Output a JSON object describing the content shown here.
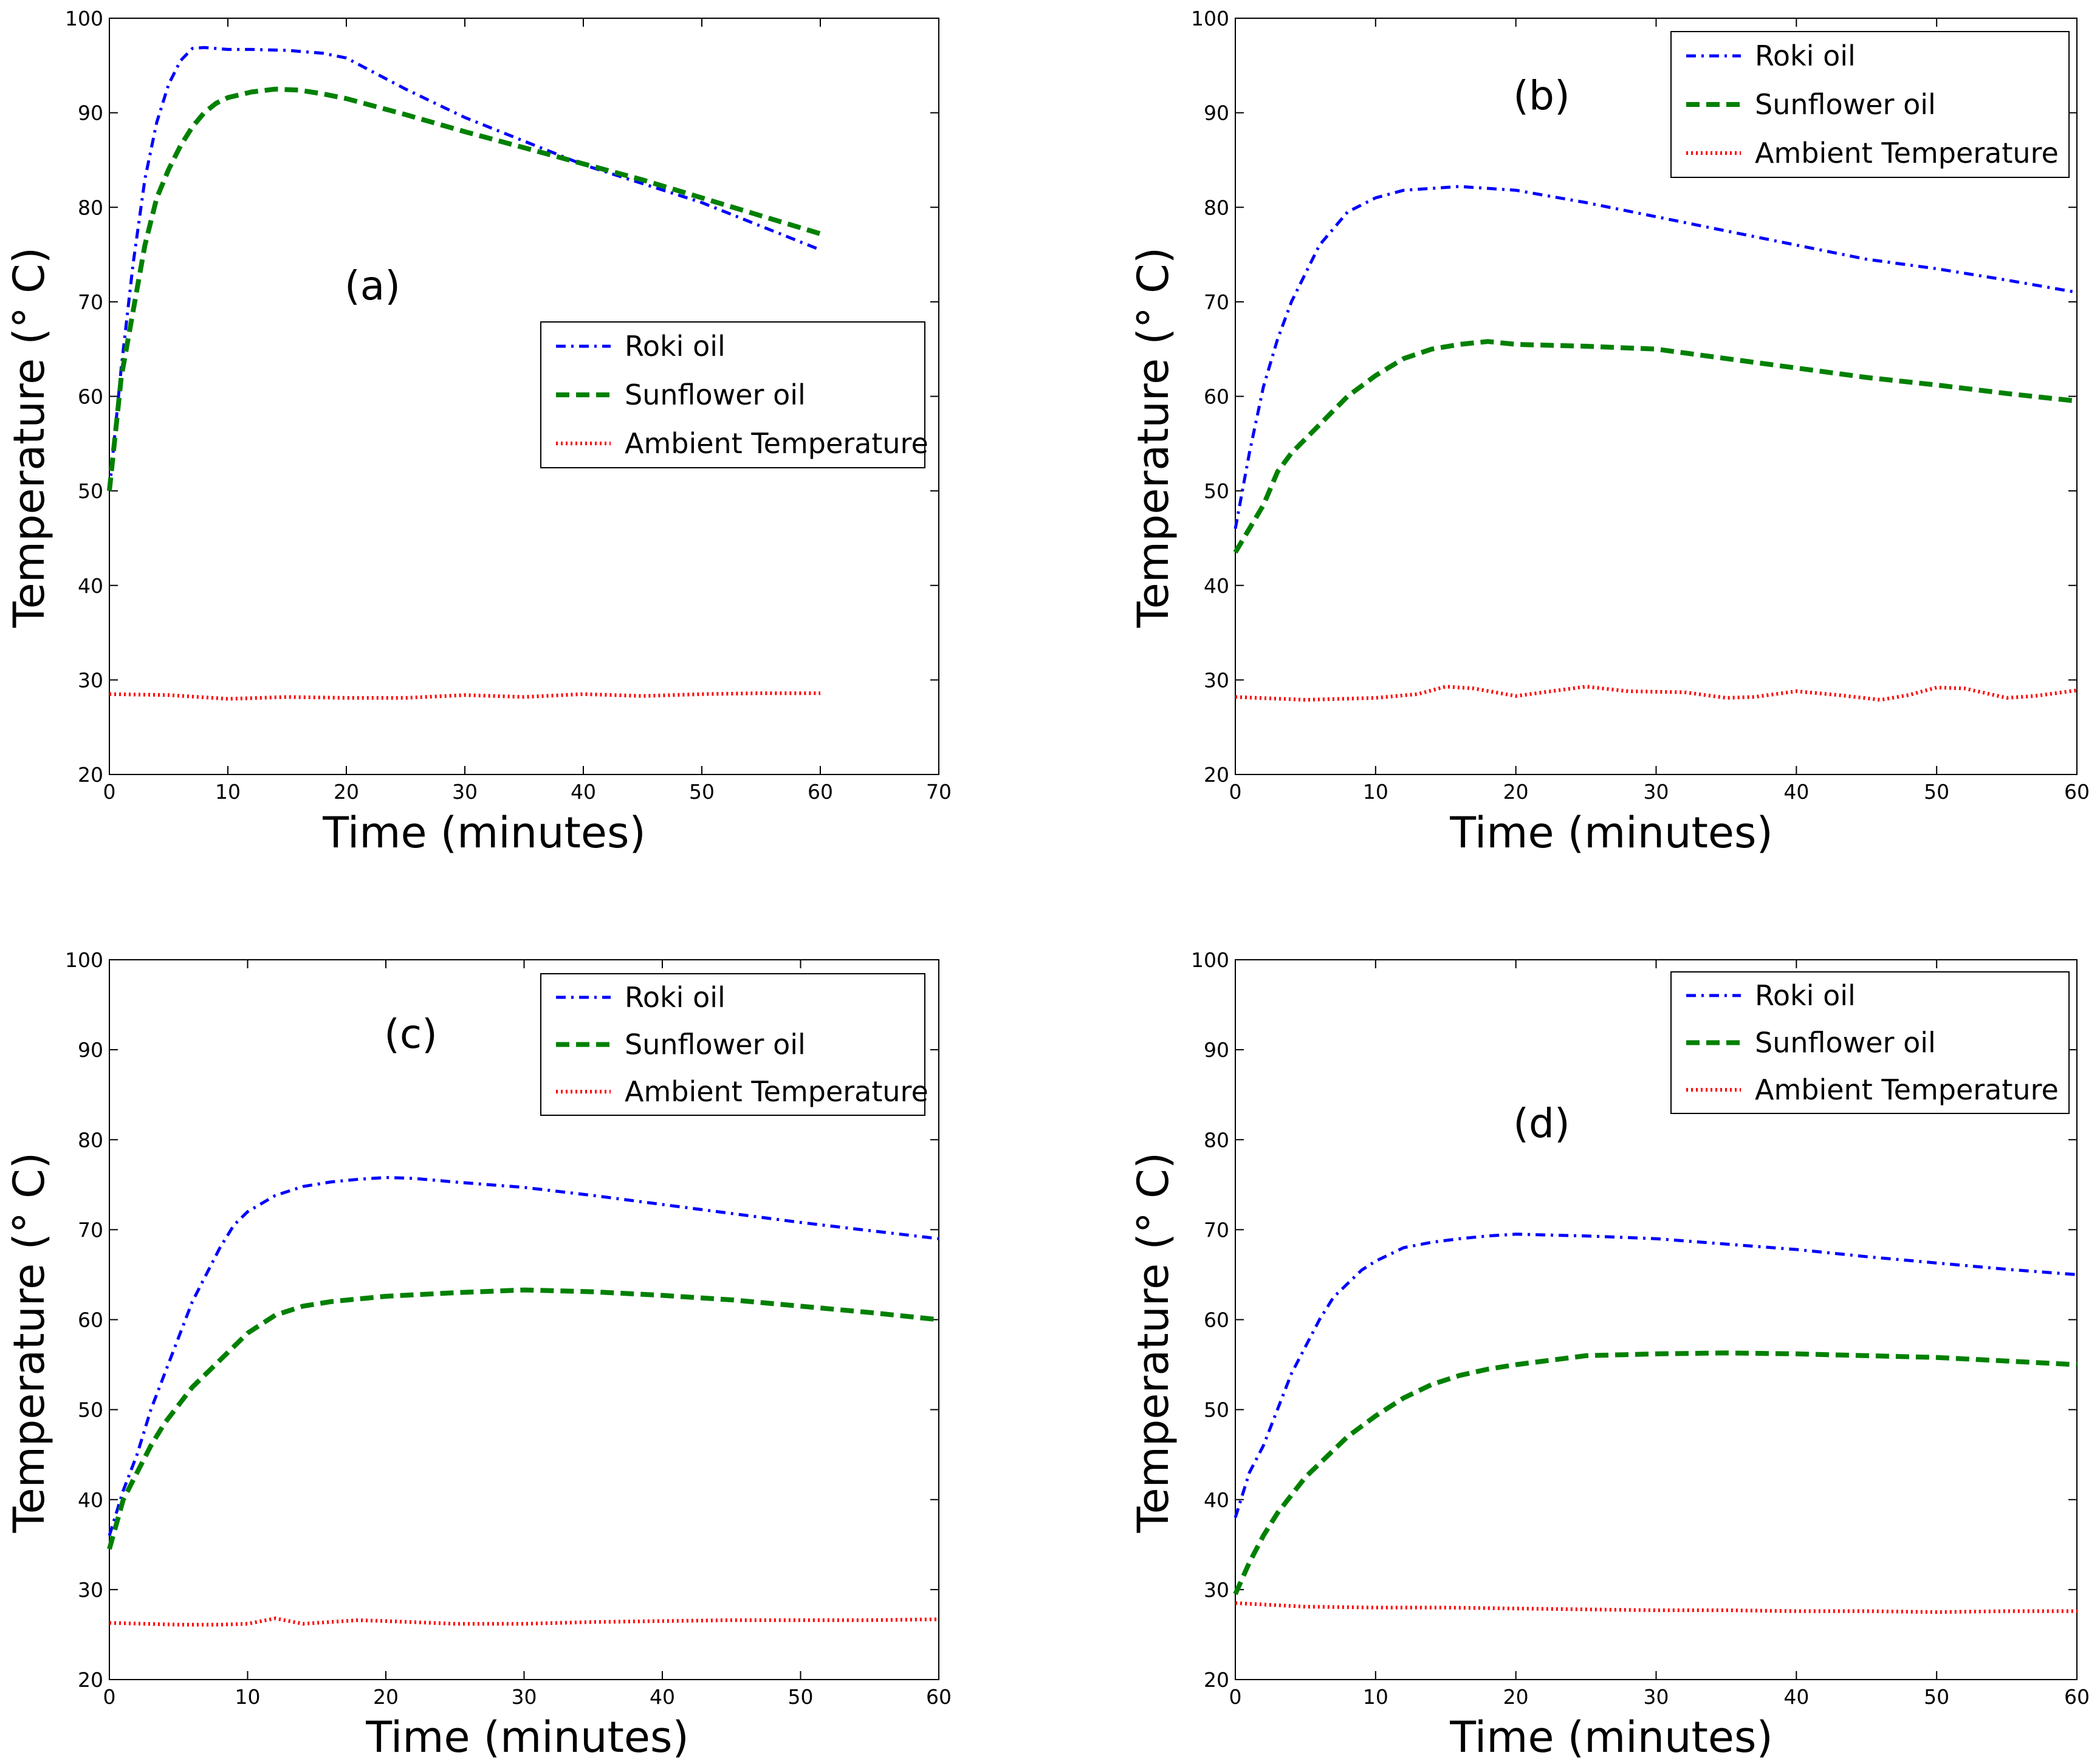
{
  "chart_data": [
    {
      "type": "line",
      "panel_label": "(a)",
      "xlabel": "Time (minutes)",
      "ylabel": "Temperature (° C)",
      "xlim": [
        0,
        70
      ],
      "ylim": [
        20,
        100
      ],
      "xticks": [
        0,
        10,
        20,
        30,
        40,
        50,
        60,
        70
      ],
      "yticks": [
        20,
        30,
        40,
        50,
        60,
        70,
        80,
        90,
        100
      ],
      "legend_position": "center-right",
      "series": [
        {
          "name": "Roki oil",
          "color": "#0000ff",
          "style": "dashdot",
          "x": [
            0,
            1,
            2,
            3,
            4,
            5,
            6,
            7,
            8,
            10,
            12,
            15,
            18,
            20,
            25,
            30,
            35,
            40,
            45,
            50,
            55,
            60
          ],
          "y": [
            50,
            63,
            74,
            83,
            89,
            93,
            95.5,
            96.8,
            96.9,
            96.7,
            96.7,
            96.6,
            96.3,
            95.8,
            92.5,
            89.5,
            87,
            84.5,
            82.5,
            80.5,
            78,
            75.5
          ]
        },
        {
          "name": "Sunflower oil",
          "color": "#008000",
          "style": "dashed",
          "x": [
            0,
            1,
            2,
            3,
            4,
            5,
            6,
            7,
            8,
            9,
            10,
            12,
            14,
            16,
            18,
            20,
            25,
            30,
            35,
            40,
            45,
            50,
            55,
            60
          ],
          "y": [
            50,
            62,
            69,
            76,
            81,
            84,
            86.5,
            88.5,
            90,
            91,
            91.6,
            92.2,
            92.5,
            92.4,
            92,
            91.5,
            89.8,
            88,
            86.3,
            84.6,
            82.9,
            81,
            79.1,
            77.2
          ]
        },
        {
          "name": "Ambient Temperature",
          "color": "#ff0000",
          "style": "dotted",
          "x": [
            0,
            5,
            10,
            15,
            20,
            25,
            30,
            35,
            40,
            45,
            50,
            55,
            60
          ],
          "y": [
            28.5,
            28.4,
            28,
            28.2,
            28.1,
            28.1,
            28.4,
            28.2,
            28.5,
            28.3,
            28.5,
            28.6,
            28.6
          ]
        }
      ]
    },
    {
      "type": "line",
      "panel_label": "(b)",
      "xlabel": "Time (minutes)",
      "ylabel": "Temperature (° C)",
      "xlim": [
        0,
        60
      ],
      "ylim": [
        20,
        100
      ],
      "xticks": [
        0,
        10,
        20,
        30,
        40,
        50,
        60
      ],
      "yticks": [
        20,
        30,
        40,
        50,
        60,
        70,
        80,
        90,
        100
      ],
      "legend_position": "top-right",
      "series": [
        {
          "name": "Roki oil",
          "color": "#0000ff",
          "style": "dashdot",
          "x": [
            0,
            1,
            2,
            3,
            4,
            5,
            6,
            8,
            10,
            12,
            14,
            16,
            17,
            20,
            25,
            30,
            35,
            40,
            45,
            50,
            55,
            60
          ],
          "y": [
            46,
            54,
            61,
            66,
            70,
            73,
            76,
            79.5,
            81,
            81.8,
            82,
            82.2,
            82.1,
            81.8,
            80.5,
            79,
            77.5,
            76,
            74.5,
            73.5,
            72.3,
            71
          ]
        },
        {
          "name": "Sunflower oil",
          "color": "#008000",
          "style": "dashed",
          "x": [
            0,
            1,
            2,
            3,
            4,
            5,
            6,
            8,
            10,
            12,
            14,
            16,
            18,
            20,
            25,
            30,
            35,
            40,
            45,
            50,
            55,
            60
          ],
          "y": [
            43.5,
            46,
            48.5,
            52,
            54,
            55.5,
            57,
            60,
            62.2,
            64,
            65,
            65.5,
            65.8,
            65.5,
            65.3,
            65,
            64,
            63,
            62,
            61.2,
            60.3,
            59.5
          ]
        },
        {
          "name": "Ambient Temperature",
          "color": "#ff0000",
          "style": "dotted",
          "x": [
            0,
            5,
            10,
            13,
            15,
            17,
            20,
            22,
            25,
            28,
            32,
            35,
            37,
            40,
            43,
            46,
            48,
            50,
            52,
            55,
            57,
            60
          ],
          "y": [
            28.2,
            27.9,
            28.1,
            28.5,
            29.3,
            29.1,
            28.3,
            28.7,
            29.3,
            28.8,
            28.7,
            28.1,
            28.2,
            28.8,
            28.4,
            27.9,
            28.4,
            29.2,
            29.1,
            28.1,
            28.3,
            28.9
          ]
        }
      ]
    },
    {
      "type": "line",
      "panel_label": "(c)",
      "xlabel": "Time (minutes)",
      "ylabel": "Temperature (° C)",
      "xlim": [
        0,
        60
      ],
      "ylim": [
        20,
        100
      ],
      "xticks": [
        0,
        10,
        20,
        30,
        40,
        50,
        60
      ],
      "yticks": [
        20,
        30,
        40,
        50,
        60,
        70,
        80,
        90,
        100
      ],
      "legend_position": "top-right",
      "series": [
        {
          "name": "Roki oil",
          "color": "#0000ff",
          "style": "dashdot",
          "x": [
            0,
            1,
            2,
            3,
            4,
            5,
            6,
            7,
            8,
            9,
            10,
            12,
            14,
            16,
            18,
            20,
            22,
            25,
            30,
            35,
            40,
            45,
            50,
            55,
            60
          ],
          "y": [
            36,
            41,
            45,
            50,
            54,
            58,
            62,
            65,
            68,
            70.5,
            72,
            73.8,
            74.8,
            75.3,
            75.6,
            75.8,
            75.7,
            75.3,
            74.7,
            73.8,
            72.8,
            71.8,
            70.8,
            69.9,
            69
          ]
        },
        {
          "name": "Sunflower oil",
          "color": "#008000",
          "style": "dashed",
          "x": [
            0,
            1,
            2,
            3,
            4,
            5,
            6,
            7,
            8,
            9,
            10,
            12,
            14,
            16,
            18,
            20,
            25,
            30,
            35,
            40,
            45,
            50,
            55,
            60
          ],
          "y": [
            34.5,
            40,
            43,
            46,
            48.5,
            50.5,
            52.5,
            54,
            55.5,
            57,
            58.5,
            60.5,
            61.5,
            62,
            62.3,
            62.6,
            63,
            63.3,
            63.1,
            62.7,
            62.2,
            61.5,
            60.8,
            60
          ]
        },
        {
          "name": "Ambient Temperature",
          "color": "#ff0000",
          "style": "dotted",
          "x": [
            0,
            5,
            8,
            10,
            12,
            14,
            18,
            20,
            25,
            30,
            35,
            40,
            45,
            50,
            55,
            60
          ],
          "y": [
            26.3,
            26.1,
            26.1,
            26.2,
            26.8,
            26.2,
            26.6,
            26.5,
            26.2,
            26.2,
            26.4,
            26.5,
            26.6,
            26.6,
            26.6,
            26.7
          ]
        }
      ]
    },
    {
      "type": "line",
      "panel_label": "(d)",
      "xlabel": "Time (minutes)",
      "ylabel": "Temperature (° C)",
      "xlim": [
        0,
        60
      ],
      "ylim": [
        20,
        100
      ],
      "xticks": [
        0,
        10,
        20,
        30,
        40,
        50,
        60
      ],
      "yticks": [
        20,
        30,
        40,
        50,
        60,
        70,
        80,
        90,
        100
      ],
      "legend_position": "top-right",
      "series": [
        {
          "name": "Roki oil",
          "color": "#0000ff",
          "style": "dashdot",
          "x": [
            0,
            1,
            2,
            3,
            4,
            5,
            6,
            7,
            8,
            9,
            10,
            12,
            14,
            16,
            18,
            20,
            25,
            30,
            35,
            40,
            45,
            50,
            55,
            60
          ],
          "y": [
            38,
            43,
            46,
            50,
            54,
            57,
            60,
            62.5,
            64,
            65.5,
            66.5,
            68,
            68.6,
            69,
            69.3,
            69.5,
            69.3,
            69,
            68.4,
            67.8,
            67,
            66.3,
            65.6,
            65
          ]
        },
        {
          "name": "Sunflower oil",
          "color": "#008000",
          "style": "dashed",
          "x": [
            0,
            1,
            2,
            3,
            4,
            5,
            6,
            8,
            10,
            12,
            14,
            16,
            18,
            20,
            25,
            30,
            35,
            40,
            45,
            50,
            55,
            60
          ],
          "y": [
            29.5,
            33,
            36,
            38.5,
            40.5,
            42.5,
            44,
            47,
            49.3,
            51.3,
            52.8,
            53.8,
            54.5,
            55,
            56,
            56.2,
            56.3,
            56.2,
            56,
            55.8,
            55.4,
            55
          ]
        },
        {
          "name": "Ambient Temperature",
          "color": "#ff0000",
          "style": "dotted",
          "x": [
            0,
            5,
            10,
            15,
            20,
            25,
            30,
            35,
            40,
            45,
            50,
            55,
            60
          ],
          "y": [
            28.5,
            28.1,
            28,
            28,
            27.9,
            27.8,
            27.7,
            27.7,
            27.6,
            27.6,
            27.5,
            27.6,
            27.6
          ]
        }
      ]
    }
  ]
}
